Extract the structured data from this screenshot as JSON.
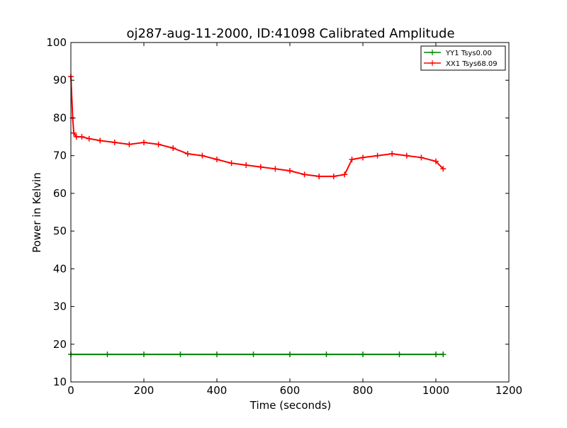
{
  "chart_data": {
    "type": "line",
    "title": "oj287-aug-11-2000, ID:41098 Calibrated Amplitude",
    "xlabel": "Time (seconds)",
    "ylabel": "Power in Kelvin",
    "xlim": [
      0,
      1200
    ],
    "ylim": [
      10,
      100
    ],
    "x_ticks": [
      0,
      200,
      400,
      600,
      800,
      1000,
      1200
    ],
    "y_ticks": [
      10,
      20,
      30,
      40,
      50,
      60,
      70,
      80,
      90,
      100
    ],
    "grid": false,
    "legend_position": "top-right",
    "marker": "plus",
    "series": [
      {
        "name": "YY1 Tsys0.00",
        "color": "#008000",
        "x": [
          0,
          100,
          200,
          300,
          400,
          500,
          600,
          700,
          800,
          900,
          1000,
          1020
        ],
        "y": [
          17.3,
          17.3,
          17.3,
          17.3,
          17.3,
          17.3,
          17.3,
          17.3,
          17.3,
          17.3,
          17.3,
          17.3
        ]
      },
      {
        "name": "XX1 Tsys68.09",
        "color": "#ff0000",
        "x": [
          0,
          5,
          8,
          15,
          30,
          50,
          80,
          120,
          160,
          200,
          240,
          280,
          320,
          360,
          400,
          440,
          480,
          520,
          560,
          600,
          640,
          680,
          720,
          750,
          770,
          800,
          840,
          880,
          920,
          960,
          1000,
          1020
        ],
        "y": [
          91,
          80,
          76,
          75,
          75,
          74.5,
          74,
          73.5,
          73,
          73.5,
          73,
          72,
          70.5,
          70,
          69,
          68,
          67.5,
          67,
          66.5,
          66,
          65,
          64.5,
          64.5,
          65,
          69,
          69.5,
          70,
          70.5,
          70,
          69.5,
          68.5,
          66.5
        ]
      }
    ]
  }
}
